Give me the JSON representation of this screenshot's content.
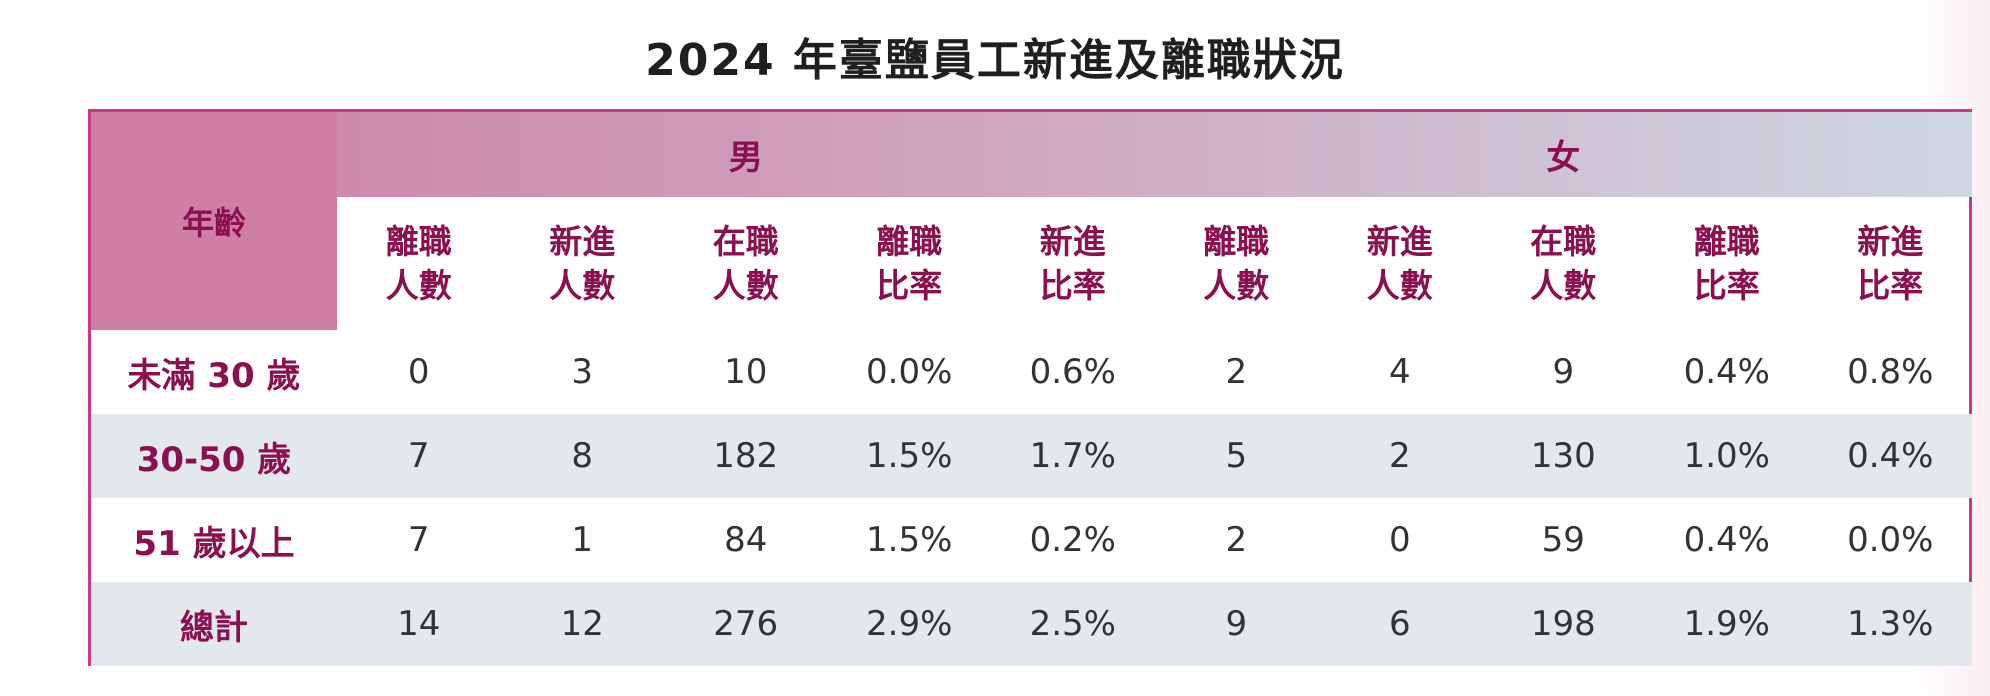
{
  "title": "2024 年臺鹽員工新進及離職狀況",
  "colors": {
    "accent": "#c93a86",
    "header_text": "#8b1050",
    "stripe": "#e3e8ec"
  },
  "table": {
    "age_header": "年齡",
    "genders": [
      "男",
      "女"
    ],
    "columns": [
      [
        "離職",
        "人數"
      ],
      [
        "新進",
        "人數"
      ],
      [
        "在職",
        "人數"
      ],
      [
        "離職",
        "比率"
      ],
      [
        "新進",
        "比率"
      ]
    ],
    "rows": [
      {
        "label": "未滿 30 歲",
        "values": [
          "0",
          "3",
          "10",
          "0.0%",
          "0.6%",
          "2",
          "4",
          "9",
          "0.4%",
          "0.8%"
        ]
      },
      {
        "label": "30-50 歲",
        "values": [
          "7",
          "8",
          "182",
          "1.5%",
          "1.7%",
          "5",
          "2",
          "130",
          "1.0%",
          "0.4%"
        ]
      },
      {
        "label": "51 歲以上",
        "values": [
          "7",
          "1",
          "84",
          "1.5%",
          "0.2%",
          "2",
          "0",
          "59",
          "0.4%",
          "0.0%"
        ]
      },
      {
        "label": "總計",
        "values": [
          "14",
          "12",
          "276",
          "2.9%",
          "2.5%",
          "9",
          "6",
          "198",
          "1.9%",
          "1.3%"
        ]
      }
    ]
  }
}
